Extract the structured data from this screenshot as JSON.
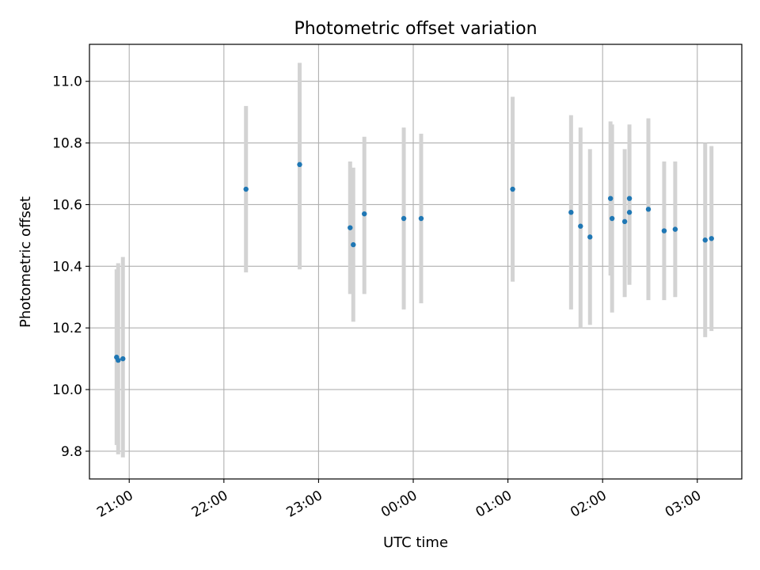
{
  "chart_data": {
    "type": "scatter",
    "title": "Photometric offset variation",
    "xlabel": "UTC time",
    "ylabel": "Photometric offset",
    "x_ticks": [
      "21:00",
      "22:00",
      "23:00",
      "00:00",
      "01:00",
      "02:00",
      "03:00"
    ],
    "x_tick_hours": [
      21,
      22,
      23,
      24,
      25,
      26,
      27
    ],
    "xlim_hours": [
      20.58,
      27.47
    ],
    "y_ticks": [
      "9.8",
      "10.0",
      "10.2",
      "10.4",
      "10.6",
      "10.8",
      "11.0"
    ],
    "y_tick_values": [
      9.8,
      10.0,
      10.2,
      10.4,
      10.6,
      10.8,
      11.0
    ],
    "ylim": [
      9.71,
      11.12
    ],
    "grid": true,
    "marker_color": "#1f77b4",
    "errorbar_color": "#d3d3d3",
    "points": [
      {
        "t": "20:52",
        "y": 10.105,
        "lo": 9.82,
        "hi": 10.39
      },
      {
        "t": "20:53",
        "y": 10.095,
        "lo": 9.79,
        "hi": 10.41
      },
      {
        "t": "20:56",
        "y": 10.1,
        "lo": 9.78,
        "hi": 10.43
      },
      {
        "t": "22:14",
        "y": 10.65,
        "lo": 10.38,
        "hi": 10.92
      },
      {
        "t": "22:48",
        "y": 10.73,
        "lo": 10.39,
        "hi": 11.06
      },
      {
        "t": "23:20",
        "y": 10.525,
        "lo": 10.31,
        "hi": 10.74
      },
      {
        "t": "23:22",
        "y": 10.47,
        "lo": 10.22,
        "hi": 10.72
      },
      {
        "t": "23:29",
        "y": 10.57,
        "lo": 10.31,
        "hi": 10.82
      },
      {
        "t": "23:54",
        "y": 10.555,
        "lo": 10.26,
        "hi": 10.85
      },
      {
        "t": "00:05",
        "y": 10.555,
        "lo": 10.28,
        "hi": 10.83
      },
      {
        "t": "01:03",
        "y": 10.65,
        "lo": 10.35,
        "hi": 10.95
      },
      {
        "t": "01:40",
        "y": 10.575,
        "lo": 10.26,
        "hi": 10.89
      },
      {
        "t": "01:46",
        "y": 10.53,
        "lo": 10.2,
        "hi": 10.85
      },
      {
        "t": "01:52",
        "y": 10.495,
        "lo": 10.21,
        "hi": 10.78
      },
      {
        "t": "02:05",
        "y": 10.62,
        "lo": 10.37,
        "hi": 10.87
      },
      {
        "t": "02:06",
        "y": 10.555,
        "lo": 10.25,
        "hi": 10.86
      },
      {
        "t": "02:14",
        "y": 10.545,
        "lo": 10.3,
        "hi": 10.78
      },
      {
        "t": "02:17",
        "y": 10.62,
        "lo": 10.38,
        "hi": 10.86
      },
      {
        "t": "02:17",
        "y": 10.575,
        "lo": 10.34,
        "hi": 10.81
      },
      {
        "t": "02:29",
        "y": 10.585,
        "lo": 10.29,
        "hi": 10.88
      },
      {
        "t": "02:39",
        "y": 10.515,
        "lo": 10.29,
        "hi": 10.74
      },
      {
        "t": "02:46",
        "y": 10.52,
        "lo": 10.3,
        "hi": 10.74
      },
      {
        "t": "03:05",
        "y": 10.485,
        "lo": 10.17,
        "hi": 10.8
      },
      {
        "t": "03:09",
        "y": 10.49,
        "lo": 10.19,
        "hi": 10.79
      }
    ]
  }
}
